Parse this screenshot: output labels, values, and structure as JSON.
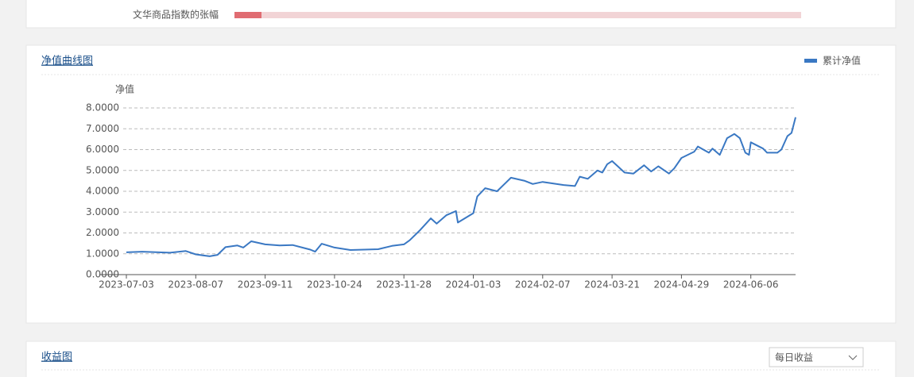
{
  "top_row": {
    "label": "文华商品指数的张幅"
  },
  "chart_data": {
    "type": "line",
    "title": "净值曲线图",
    "y_label": "净值",
    "x": [
      "2023-07-03",
      "2023-07-11",
      "2023-07-25",
      "2023-08-02",
      "2023-08-07",
      "2023-08-14",
      "2023-08-18",
      "2023-08-22",
      "2023-08-28",
      "2023-08-31",
      "2023-09-04",
      "2023-09-11",
      "2023-09-20",
      "2023-09-28",
      "2023-10-09",
      "2023-10-12",
      "2023-10-16",
      "2023-10-24",
      "2023-11-01",
      "2023-11-15",
      "2023-11-22",
      "2023-11-28",
      "2023-12-01",
      "2023-12-06",
      "2023-12-12",
      "2023-12-15",
      "2023-12-20",
      "2023-12-25",
      "2023-12-26",
      "2024-01-03",
      "2024-01-05",
      "2024-01-09",
      "2024-01-15",
      "2024-01-22",
      "2024-01-29",
      "2024-02-02",
      "2024-02-07",
      "2024-02-20",
      "2024-02-27",
      "2024-03-01",
      "2024-03-06",
      "2024-03-12",
      "2024-03-15",
      "2024-03-18",
      "2024-03-21",
      "2024-03-28",
      "2024-04-02",
      "2024-04-08",
      "2024-04-12",
      "2024-04-16",
      "2024-04-22",
      "2024-04-25",
      "2024-04-29",
      "2024-05-06",
      "2024-05-08",
      "2024-05-14",
      "2024-05-16",
      "2024-05-20",
      "2024-05-24",
      "2024-05-28",
      "2024-05-31",
      "2024-06-03",
      "2024-06-05",
      "2024-06-06",
      "2024-06-12",
      "2024-06-14",
      "2024-06-19",
      "2024-06-21",
      "2024-06-24",
      "2024-06-26",
      "2024-06-28"
    ],
    "series": [
      {
        "name": "累计净值",
        "color": "#3a78c3",
        "values": [
          1.07,
          1.1,
          1.05,
          1.13,
          0.97,
          0.88,
          0.95,
          1.32,
          1.4,
          1.3,
          1.6,
          1.45,
          1.4,
          1.42,
          1.2,
          1.1,
          1.48,
          1.3,
          1.18,
          1.22,
          1.38,
          1.45,
          1.65,
          2.1,
          2.7,
          2.45,
          2.85,
          3.05,
          2.5,
          2.95,
          3.75,
          4.15,
          4.0,
          4.65,
          4.5,
          4.35,
          4.45,
          4.3,
          4.25,
          4.7,
          4.6,
          5.0,
          4.9,
          5.3,
          5.45,
          4.9,
          4.85,
          5.25,
          4.95,
          5.2,
          4.85,
          5.1,
          5.6,
          5.9,
          6.15,
          5.85,
          6.05,
          5.75,
          6.55,
          6.75,
          6.55,
          5.85,
          5.75,
          6.35,
          6.05,
          5.85,
          5.85,
          6.0,
          6.65,
          6.8,
          7.55
        ]
      }
    ],
    "xlim": [
      "2023-07-03",
      "2024-06-28"
    ],
    "xticks": [
      "2023-07-03",
      "2023-08-07",
      "2023-09-11",
      "2023-10-24",
      "2023-11-28",
      "2024-01-03",
      "2024-02-07",
      "2024-03-21",
      "2024-04-29",
      "2024-06-06"
    ],
    "ylim": [
      0,
      8
    ],
    "yticks": [
      {
        "value": 0,
        "label": "0.0000"
      },
      {
        "value": 1,
        "label": "1.0000"
      },
      {
        "value": 2,
        "label": "2.0000"
      },
      {
        "value": 3,
        "label": "3.0000"
      },
      {
        "value": 4,
        "label": "4.0000"
      },
      {
        "value": 5,
        "label": "5.0000"
      },
      {
        "value": 6,
        "label": "6.0000"
      },
      {
        "value": 7,
        "label": "7.0000"
      },
      {
        "value": 8,
        "label": "8.0000"
      }
    ],
    "grid": true,
    "legend": "top-right"
  },
  "panel2": {
    "title": "收益图",
    "dropdown": "每日收益"
  }
}
